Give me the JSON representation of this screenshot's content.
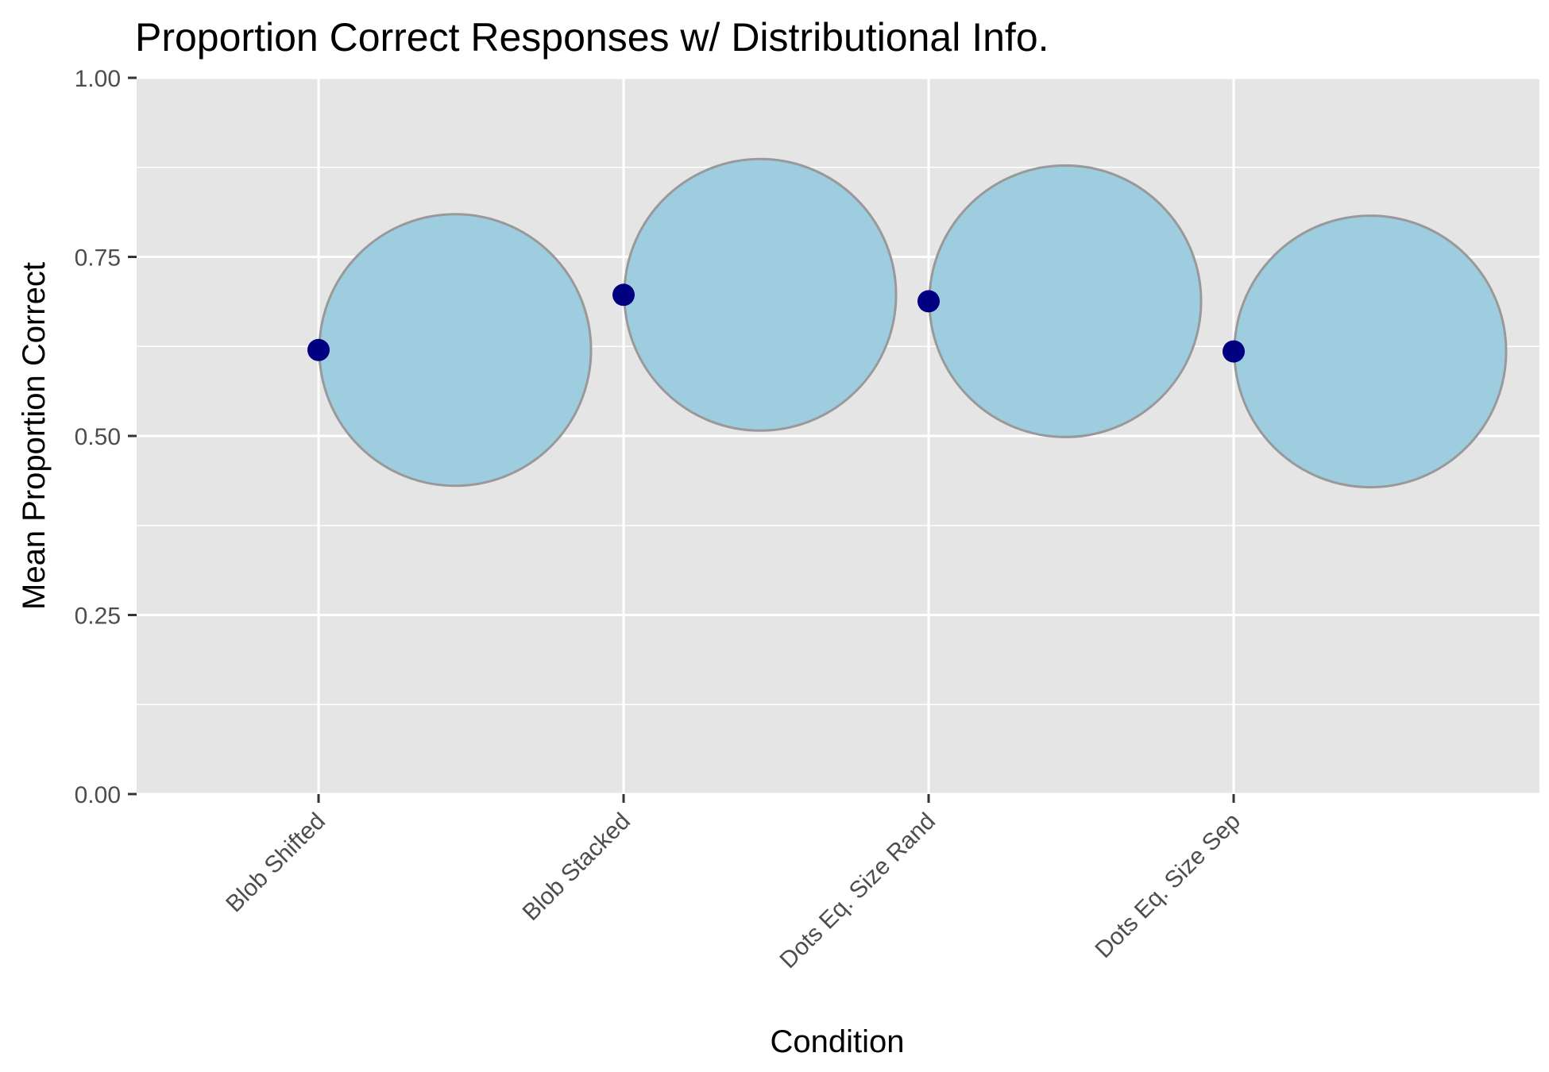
{
  "chart_data": {
    "type": "scatter",
    "title": "Proportion Correct Responses w/ Distributional Info.",
    "xlabel": "Condition",
    "ylabel": "Mean Proportion Correct",
    "categories": [
      "Blob Shifted",
      "Blob Stacked",
      "Dots Eq. Size Rand",
      "Dots Eq. Size Sep"
    ],
    "values": [
      0.62,
      0.697,
      0.688,
      0.618
    ],
    "ylim": [
      0,
      1
    ],
    "y_ticks": [
      "0.00",
      "0.25",
      "0.50",
      "0.75",
      "1.00"
    ],
    "grid": true,
    "legend": "none",
    "point_color": "#000080",
    "circle_fill": "#9ecde0",
    "circle_stroke": "#999999",
    "panel_background": "#e5e5e5"
  }
}
